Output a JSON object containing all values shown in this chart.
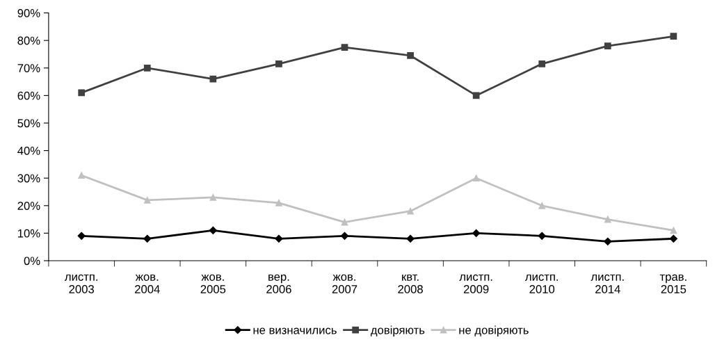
{
  "chart_data": {
    "type": "line",
    "categories": [
      "листп.\n2003",
      "жов.\n2004",
      "жов.\n2005",
      "вер.\n2006",
      "жов.\n2007",
      "квт.\n2008",
      "листп.\n2009",
      "листп.\n2010",
      "листп.\n2014",
      "трав.\n2015"
    ],
    "series": [
      {
        "name": "не визначились",
        "color": "#000000",
        "marker": "diamond",
        "values": [
          9,
          8,
          11,
          8,
          9,
          8,
          10,
          9,
          7,
          8
        ]
      },
      {
        "name": "довіряють",
        "color": "#404040",
        "marker": "square",
        "values": [
          61,
          70,
          66,
          71.5,
          77.5,
          74.5,
          60,
          71.5,
          78,
          81.5
        ]
      },
      {
        "name": "не довіряють",
        "color": "#c0c0c0",
        "marker": "triangle",
        "values": [
          31,
          22,
          23,
          21,
          14,
          18,
          30,
          20,
          15,
          11
        ]
      }
    ],
    "ylim": [
      0,
      90
    ],
    "yticks": [
      {
        "value": 0,
        "label": "0%"
      },
      {
        "value": 10,
        "label": "10%"
      },
      {
        "value": 20,
        "label": "20%"
      },
      {
        "value": 30,
        "label": "30%"
      },
      {
        "value": 40,
        "label": "40%"
      },
      {
        "value": 50,
        "label": "50%"
      },
      {
        "value": 60,
        "label": "60%"
      },
      {
        "value": 70,
        "label": "70%"
      },
      {
        "value": 80,
        "label": "80%"
      },
      {
        "value": 90,
        "label": "90%"
      }
    ],
    "grid": false,
    "legend": "bottom"
  }
}
